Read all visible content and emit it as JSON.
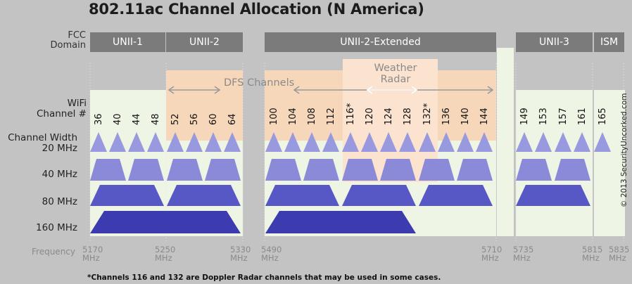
{
  "title": "802.11ac Channel Allocation (N America)",
  "labels": {
    "fcc_domain": [
      "FCC",
      "Domain"
    ],
    "wifi_channel": [
      "WiFi",
      "Channel #"
    ],
    "channel_width": [
      "Channel Width",
      "20 MHz"
    ],
    "w40": "40 MHz",
    "w80": "80 MHz",
    "w160": "160 MHz",
    "frequency": "Frequency"
  },
  "domains": [
    "UNII-1",
    "UNII-2",
    "UNII-2-Extended",
    "UNII-3",
    "ISM"
  ],
  "overlays": {
    "dfs": "DFS Channels",
    "weather_radar": [
      "Weather",
      "Radar"
    ]
  },
  "channels": [
    "36",
    "40",
    "44",
    "48",
    "52",
    "56",
    "60",
    "64",
    "100",
    "104",
    "108",
    "112",
    "116*",
    "120",
    "124",
    "128",
    "132*",
    "136",
    "140",
    "144",
    "149",
    "153",
    "157",
    "161",
    "165"
  ],
  "frequencies": [
    "5170",
    "5250",
    "5330",
    "5490",
    "5710",
    "5735",
    "5815",
    "5835"
  ],
  "unit": "MHz",
  "footnote": "*Channels 116 and 132 are Doppler Radar channels that may be used in some cases.",
  "copyright": "© 2013 SecurityUncorked.com",
  "colors": {
    "background": "#c3c3c3",
    "domain_bar": "#7b7b7b",
    "band_fill": "#eef5e4",
    "dfs_fill": "#f7d7ba",
    "radar_fill": "#fbe3cf",
    "w20": "#9999e0",
    "w40": "#8a8ad8",
    "w80": "#5757c6",
    "w160": "#3c3cb0"
  }
}
